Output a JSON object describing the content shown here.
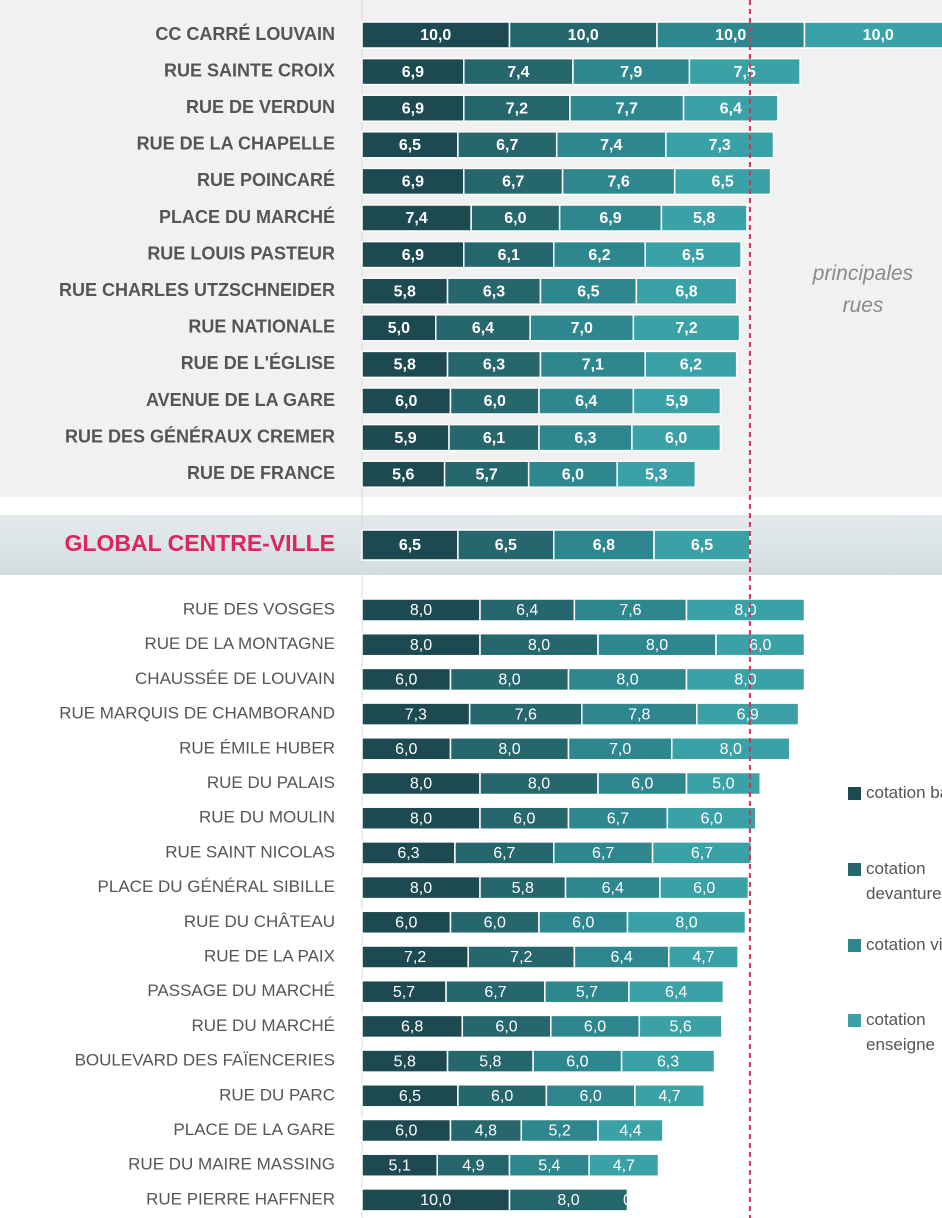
{
  "chart_data": [
    {
      "type": "bar",
      "orientation": "horizontal",
      "stacked": true,
      "xlim": [
        0,
        40
      ],
      "categories": [
        "CC CARRÉ LOUVAIN",
        "RUE SAINTE CROIX",
        "RUE DE VERDUN",
        "RUE DE LA CHAPELLE",
        "RUE POINCARÉ",
        "PLACE DU MARCHÉ",
        "RUE LOUIS PASTEUR",
        "RUE CHARLES UTZSCHNEIDER",
        "RUE NATIONALE",
        "RUE DE L'ÉGLISE",
        "AVENUE DE LA GARE",
        "RUE DES GÉNÉRAUX CREMER",
        "RUE DE FRANCE"
      ],
      "annotation": "principales rues",
      "series": [
        {
          "name": "cotation bâti",
          "color": "#1d4a50",
          "values": [
            10,
            6.9,
            6.9,
            6.5,
            6.9,
            7.4,
            6.9,
            5.8,
            5.0,
            5.8,
            6.0,
            5.9,
            5.6
          ],
          "value_labels": [
            "10,0",
            "6,9",
            "6,9",
            "6,5",
            "6,9",
            "7,4",
            "6,9",
            "5,8",
            "5,0",
            "5,8",
            "6,0",
            "5,9",
            "5,6"
          ]
        },
        {
          "name": "cotation devanture",
          "color": "#26666d",
          "values": [
            10,
            7.4,
            7.2,
            6.7,
            6.7,
            6.0,
            6.1,
            6.3,
            6.4,
            6.3,
            6.0,
            6.1,
            5.7
          ],
          "value_labels": [
            "10,0",
            "7,4",
            "7,2",
            "6,7",
            "6,7",
            "6,0",
            "6,1",
            "6,3",
            "6,4",
            "6,3",
            "6,0",
            "6,1",
            "5,7"
          ]
        },
        {
          "name": "cotation vitrine",
          "color": "#2e878e",
          "values": [
            10,
            7.9,
            7.7,
            7.4,
            7.6,
            6.9,
            6.2,
            6.5,
            7.0,
            7.1,
            6.4,
            6.3,
            6.0
          ],
          "value_labels": [
            "10,0",
            "7,9",
            "7,7",
            "7,4",
            "7,6",
            "6,9",
            "6,2",
            "6,5",
            "7,0",
            "7,1",
            "6,4",
            "6,3",
            "6,0"
          ]
        },
        {
          "name": "cotation enseigne",
          "color": "#3aa1a7",
          "values": [
            10,
            7.5,
            6.4,
            7.3,
            6.5,
            5.8,
            6.5,
            6.8,
            7.2,
            6.2,
            5.9,
            6.0,
            5.3
          ],
          "value_labels": [
            "10,0",
            "7,5",
            "6,4",
            "7,3",
            "6,5",
            "5,8",
            "6,5",
            "6,8",
            "7,2",
            "6,2",
            "5,9",
            "6,0",
            "5,3"
          ]
        }
      ]
    },
    {
      "type": "bar",
      "orientation": "horizontal",
      "stacked": true,
      "xlim": [
        0,
        40
      ],
      "categories": [
        "GLOBAL CENTRE-VILLE"
      ],
      "series": [
        {
          "color": "#1d4a50",
          "values": [
            6.5
          ],
          "value_labels": [
            "6,5"
          ]
        },
        {
          "color": "#26666d",
          "values": [
            6.5
          ],
          "value_labels": [
            "6,5"
          ]
        },
        {
          "color": "#2e878e",
          "values": [
            6.8
          ],
          "value_labels": [
            "6,8"
          ]
        },
        {
          "color": "#3aa1a7",
          "values": [
            6.5
          ],
          "value_labels": [
            "6,5"
          ]
        }
      ]
    },
    {
      "type": "bar",
      "orientation": "horizontal",
      "stacked": true,
      "xlim": [
        0,
        40
      ],
      "categories": [
        "RUE DES VOSGES",
        "RUE DE LA MONTAGNE",
        "CHAUSSÉE DE LOUVAIN",
        "RUE MARQUIS DE CHAMBORAND",
        "RUE ÉMILE HUBER",
        "RUE DU PALAIS",
        "RUE DU MOULIN",
        "RUE SAINT NICOLAS",
        "PLACE DU GÉNÉRAL SIBILLE",
        "RUE DU CHÂTEAU",
        "RUE DE LA PAIX",
        "PASSAGE DU MARCHÉ",
        "RUE DU MARCHÉ",
        "BOULEVARD DES FAÏENCERIES",
        "RUE DU PARC",
        "PLACE DE LA GARE",
        "RUE DU MAIRE MASSING",
        "RUE PIERRE HAFFNER"
      ],
      "series": [
        {
          "color": "#1d4a50",
          "values": [
            8,
            8,
            6,
            7.3,
            6,
            8,
            8,
            6.3,
            8,
            6,
            7.2,
            5.7,
            6.8,
            5.8,
            6.5,
            6.0,
            5.1,
            10
          ],
          "value_labels": [
            "8,0",
            "8,0",
            "6,0",
            "7,3",
            "6,0",
            "8,0",
            "8,0",
            "6,3",
            "8,0",
            "6,0",
            "7,2",
            "5,7",
            "6,8",
            "5,8",
            "6,5",
            "6,0",
            "5,1",
            "10,0"
          ]
        },
        {
          "color": "#26666d",
          "values": [
            6.4,
            8,
            8,
            7.6,
            8,
            8,
            6,
            6.7,
            5.8,
            6,
            7.2,
            6.7,
            6,
            5.8,
            6,
            4.8,
            4.9,
            8
          ],
          "value_labels": [
            "6,4",
            "8,0",
            "8,0",
            "7,6",
            "8,0",
            "8,0",
            "6,0",
            "6,7",
            "5,8",
            "6,0",
            "7,2",
            "6,7",
            "6,0",
            "5,8",
            "6,0",
            "4,8",
            "4,9",
            "8,0"
          ]
        },
        {
          "color": "#2e878e",
          "values": [
            7.6,
            8,
            8,
            7.8,
            7,
            6,
            6.7,
            6.7,
            6.4,
            6,
            6.4,
            5.7,
            6,
            6,
            6,
            5.2,
            5.4,
            0
          ],
          "value_labels": [
            "7,6",
            "8,0",
            "8,0",
            "7,8",
            "7,0",
            "6,0",
            "6,7",
            "6,7",
            "6,4",
            "6,0",
            "6,4",
            "5,7",
            "6,0",
            "6,0",
            "6,0",
            "5,2",
            "5,4",
            "0"
          ]
        },
        {
          "color": "#3aa1a7",
          "values": [
            8,
            6,
            8,
            6.9,
            8,
            5,
            6,
            6.7,
            6,
            8,
            4.7,
            6.4,
            5.6,
            6.3,
            4.7,
            4.4,
            4.7,
            null
          ],
          "value_labels": [
            "8,0",
            "6,0",
            "8,0",
            "6,9",
            "8,0",
            "5,0",
            "6,0",
            "6,7",
            "6,0",
            "8,0",
            "4,7",
            "6,4",
            "5,6",
            "6,3",
            "4,7",
            "4,4",
            "4,7",
            null
          ]
        }
      ]
    }
  ]
}
